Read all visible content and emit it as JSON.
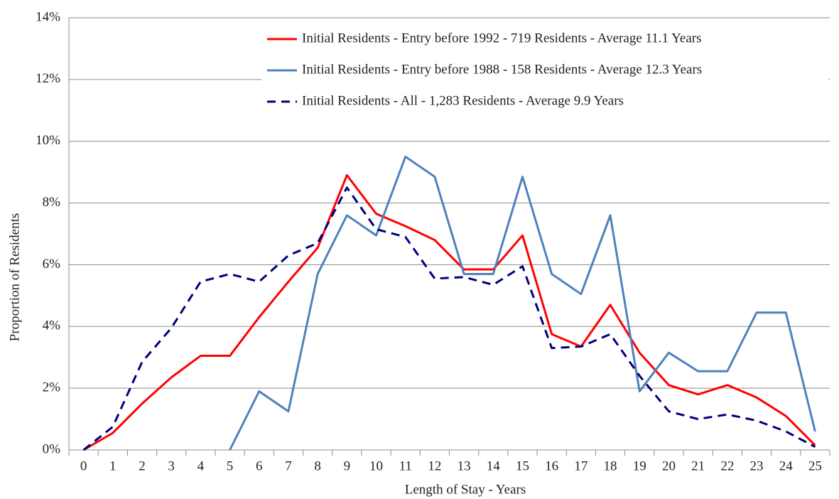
{
  "chart_data": {
    "type": "line",
    "x_label": "Length of Stay - Years",
    "y_label": "Proportion of Residents",
    "categories": [
      "0",
      "1",
      "2",
      "3",
      "4",
      "5",
      "6",
      "7",
      "8",
      "9",
      "10",
      "11",
      "12",
      "13",
      "14",
      "15",
      "16",
      "17",
      "18",
      "19",
      "20",
      "21",
      "22",
      "23",
      "24",
      "25"
    ],
    "series": [
      {
        "name": "Initial Residents - Entry before 1992 - 719 Residents - Average 11.1 Years",
        "color": "#ff0000",
        "dashed": false,
        "values": [
          0,
          0.55,
          1.5,
          2.35,
          3.05,
          3.05,
          4.3,
          5.45,
          6.55,
          8.9,
          7.65,
          7.25,
          6.8,
          5.85,
          5.85,
          6.95,
          3.75,
          3.35,
          4.7,
          3.15,
          2.1,
          1.8,
          2.1,
          1.7,
          1.1,
          0.15
        ]
      },
      {
        "name": "Initial Residents - Entry before 1988 - 158 Residents - Average 12.3 Years",
        "color": "#4f81bd",
        "dashed": false,
        "values": [
          null,
          null,
          null,
          null,
          null,
          0,
          1.9,
          1.25,
          5.7,
          7.6,
          6.95,
          9.5,
          8.85,
          5.7,
          5.7,
          8.85,
          5.7,
          5.05,
          7.6,
          1.9,
          3.15,
          2.55,
          2.55,
          4.45,
          4.45,
          0.6
        ]
      },
      {
        "name": "Initial Residents - All - 1,283 Residents - Average 9.9 Years",
        "color": "#000080",
        "dashed": true,
        "values": [
          0,
          0.75,
          2.85,
          3.95,
          5.45,
          5.7,
          5.45,
          6.3,
          6.7,
          8.5,
          7.15,
          6.9,
          5.55,
          5.6,
          5.35,
          5.95,
          3.3,
          3.35,
          3.75,
          2.4,
          1.25,
          1.0,
          1.15,
          0.95,
          0.6,
          0.1
        ]
      }
    ],
    "ylim": [
      0,
      14
    ],
    "yticks": [
      {
        "value": 0,
        "label": "0%"
      },
      {
        "value": 2,
        "label": "2%"
      },
      {
        "value": 4,
        "label": "4%"
      },
      {
        "value": 6,
        "label": "6%"
      },
      {
        "value": 8,
        "label": "8%"
      },
      {
        "value": 10,
        "label": "10%"
      },
      {
        "value": 12,
        "label": "12%"
      },
      {
        "value": 14,
        "label": "14%"
      }
    ],
    "grid": true,
    "legend": "top-right"
  }
}
